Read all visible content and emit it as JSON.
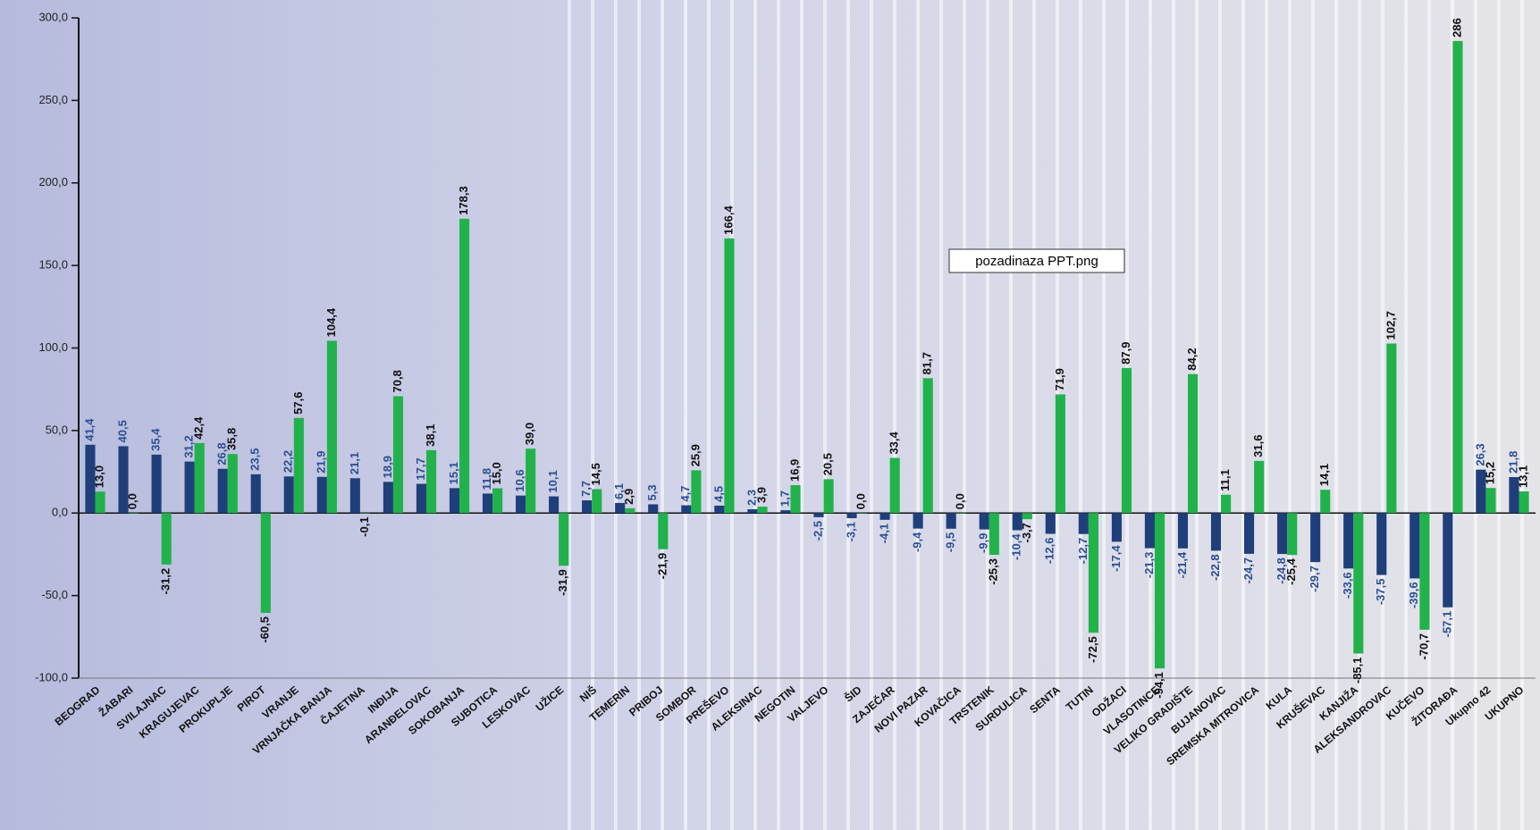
{
  "chart_data": {
    "type": "bar",
    "annotations": [
      "pozadinaza PPT.png"
    ],
    "categories": [
      "BEOGRAD",
      "ŽABARI",
      "SVILAJNAC",
      "KRAGUJEVAC",
      "PROKUPLJE",
      "PIROT",
      "VRANJE",
      "VRNJAČKA BANJA",
      "ČAJETINA",
      "INĐIJA",
      "ARANĐELOVAC",
      "SOKOBANJA",
      "SUBOTICA",
      "LESKOVAC",
      "UŽICE",
      "NIŠ",
      "TEMERIN",
      "PRIBOJ",
      "SOMBOR",
      "PREŠEVO",
      "ALEKSINAC",
      "NEGOTIN",
      "VALJEVO",
      "ŠID",
      "ZAJEČAR",
      "NOVI PAZAR",
      "KOVAČICA",
      "TRSTENIK",
      "SURDULICA",
      "SENTA",
      "TUTIN",
      "ODŽACI",
      "VLASOTINCE",
      "VELIKO GRADIŠTE",
      "BUJANOVAC",
      "SREMSKA MITROVICA",
      "KULA",
      "KRUŠEVAC",
      "KANJIŽA",
      "ALEKSANDROVAC",
      "KUČEVO",
      "ŽITORAĐA",
      "Ukupno 42",
      "UKUPNO"
    ],
    "series": [
      {
        "color": "#1f3f7a",
        "label_color": "#2b4f93",
        "values": [
          41.4,
          40.5,
          35.4,
          31.2,
          26.8,
          23.5,
          22.2,
          21.9,
          21.1,
          18.9,
          17.7,
          15.1,
          11.8,
          10.6,
          10.1,
          7.7,
          6.1,
          5.3,
          4.7,
          4.5,
          2.3,
          1.7,
          -2.5,
          -3.1,
          -4.1,
          -9.4,
          -9.5,
          -9.9,
          -10.4,
          -12.6,
          -12.7,
          -17.4,
          -21.3,
          -21.4,
          -22.8,
          -24.7,
          -24.8,
          -29.7,
          -33.6,
          -37.5,
          -39.6,
          -57.1,
          26.3,
          21.8
        ],
        "value_labels": [
          "41,4",
          "40,5",
          "35,4",
          "31,2",
          "26,8",
          "23,5",
          "22,2",
          "21,9",
          "21,1",
          "18,9",
          "17,7",
          "15,1",
          "11,8",
          "10,6",
          "10,1",
          "7,7",
          "6,1",
          "5,3",
          "4,7",
          "4,5",
          "2,3",
          "1,7",
          "-2,5",
          "-3,1",
          "-4,1",
          "-9,4",
          "-9,5",
          "-9,9",
          "-10,4",
          "-12,6",
          "-12,7",
          "-17,4",
          "-21,3",
          "-21,4",
          "-22,8",
          "-24,7",
          "-24,8",
          "-29,7",
          "-33,6",
          "-37,5",
          "-39,6",
          "-57,1",
          "26,3",
          "21,8"
        ]
      },
      {
        "color": "#22b24c",
        "label_color": "#111111",
        "values": [
          13.0,
          0.0,
          -31.2,
          42.4,
          35.8,
          -60.5,
          57.6,
          104.4,
          -0.1,
          70.8,
          38.1,
          178.3,
          15.0,
          39.0,
          -31.9,
          14.5,
          2.9,
          -21.9,
          25.9,
          166.4,
          3.9,
          16.9,
          20.5,
          0.0,
          33.4,
          81.7,
          0.0,
          -25.3,
          -3.7,
          71.9,
          -72.5,
          87.9,
          -94.1,
          84.2,
          11.1,
          31.6,
          -25.4,
          14.1,
          -85.1,
          102.7,
          -70.7,
          286,
          15.2,
          13.1
        ],
        "value_labels": [
          "13,0",
          "0,0",
          "-31,2",
          "42,4",
          "35,8",
          "-60,5",
          "57,6",
          "104,4",
          "-0,1",
          "70,8",
          "38,1",
          "178,3",
          "15,0",
          "39,0",
          "-31,9",
          "14,5",
          "2,9",
          "-21,9",
          "25,9",
          "166,4",
          "3,9",
          "16,9",
          "20,5",
          "0,0",
          "33,4",
          "81,7",
          "0,0",
          "-25,3",
          "-3,7",
          "71,9",
          "-72,5",
          "87,9",
          "-94,1",
          "84,2",
          "11,1",
          "31,6",
          "-25,4",
          "14,1",
          "-85,1",
          "102,7",
          "-70,7",
          "286",
          "15,2",
          "13,1"
        ]
      }
    ],
    "ylim": [
      -100,
      300
    ],
    "yticks": [
      {
        "value": -100,
        "label": "-100,0"
      },
      {
        "value": -50,
        "label": "-50,0"
      },
      {
        "value": 0,
        "label": "0,0"
      },
      {
        "value": 50,
        "label": "50,0"
      },
      {
        "value": 100,
        "label": "100,0"
      },
      {
        "value": 150,
        "label": "150,0"
      },
      {
        "value": 200,
        "label": "200,0"
      },
      {
        "value": 250,
        "label": "250,0"
      },
      {
        "value": 300,
        "label": "300,0"
      }
    ]
  }
}
